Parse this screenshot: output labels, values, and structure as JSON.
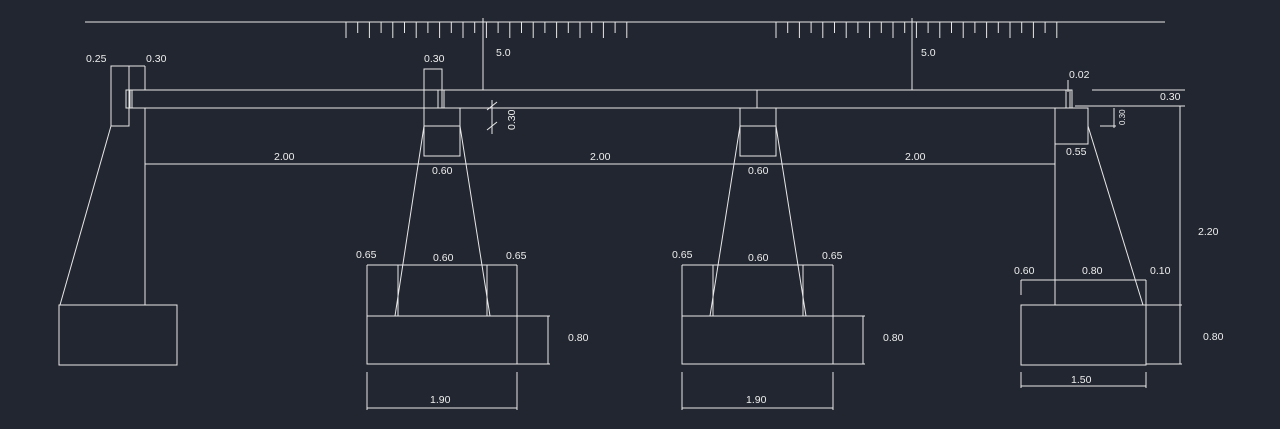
{
  "colors": {
    "background": "#222630",
    "lines": "#e8e8e8",
    "text": "#eeeeee"
  },
  "dimensions": {
    "left_abutment_wall": "0.25",
    "left_abutment_seat": "0.30",
    "pier1_cap": "0.30",
    "load_1": "5.0",
    "load_2": "5.0",
    "deck_thickness": "0.30",
    "right_joint": "0.02",
    "right_deck_depth": "0.30",
    "right_bearing_small": "0.30",
    "span_1": "2.00",
    "span_2": "2.00",
    "span_3": "2.00",
    "pier1_column_width": "0.60",
    "pier2_column_width": "0.60",
    "right_abutment_seat": "0.55",
    "right_abutment_height": "2.20",
    "pier1_toe_left": "0.65",
    "pier1_top_width": "0.60",
    "pier1_toe_right": "0.65",
    "pier2_toe_left": "0.65",
    "pier2_top_width": "0.60",
    "pier2_toe_right": "0.65",
    "right_toe_left": "0.60",
    "right_top_width": "0.80",
    "right_toe_right": "0.10",
    "pier1_footing_depth": "0.80",
    "pier2_footing_depth": "0.80",
    "right_footing_depth": "0.80",
    "pier1_footing_width": "1.90",
    "pier2_footing_width": "1.90",
    "right_footing_width": "1.50"
  }
}
